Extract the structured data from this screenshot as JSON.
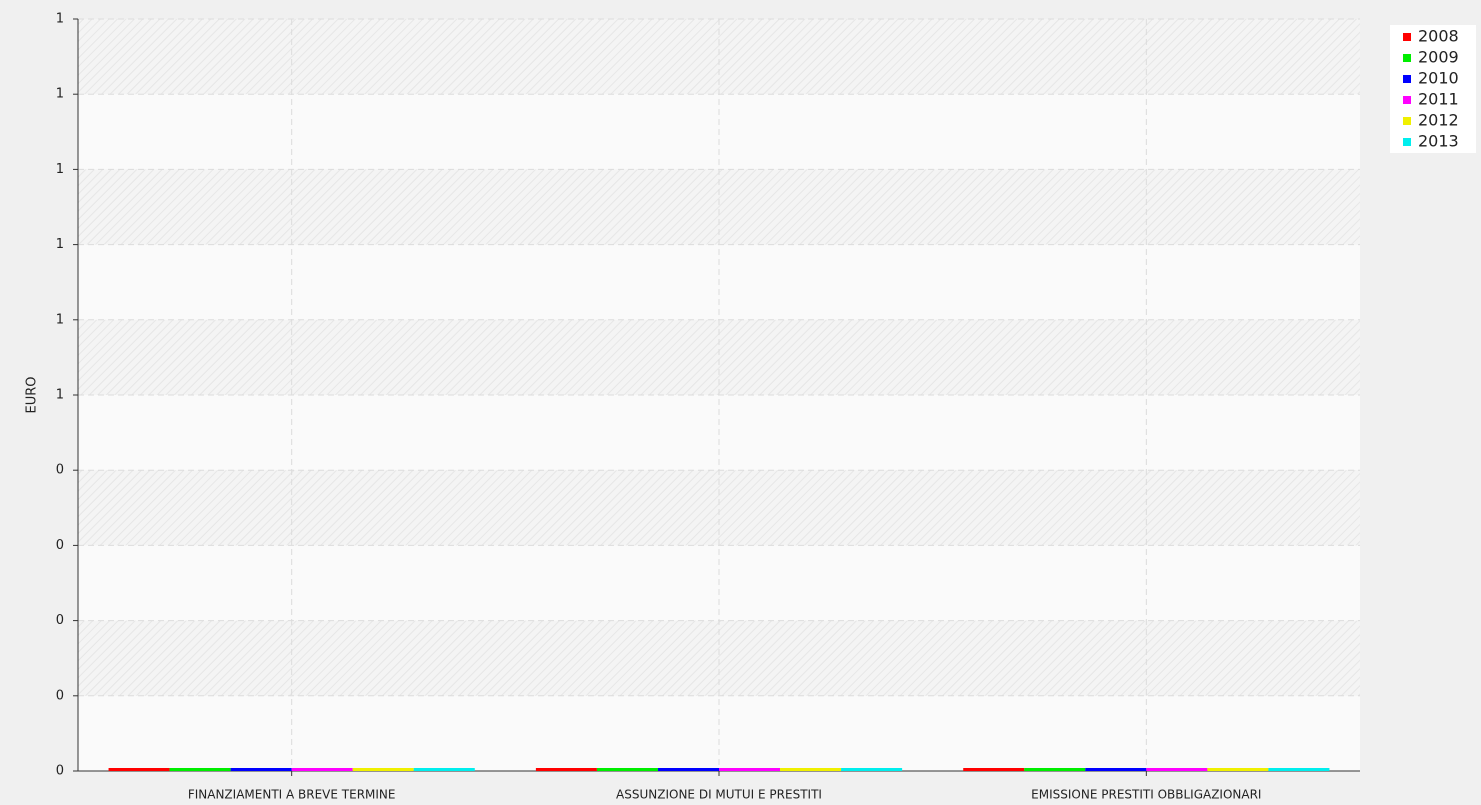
{
  "chart_data": {
    "type": "bar",
    "ylabel": "EURO",
    "categories": [
      "FINANZIAMENTI A BREVE TERMINE",
      "ASSUNZIONE DI MUTUI E PRESTITI",
      "EMISSIONE PRESTITI OBBLIGAZIONARI"
    ],
    "series": [
      {
        "name": "2008",
        "color": "#ff0000",
        "values": [
          0,
          0,
          0
        ]
      },
      {
        "name": "2009",
        "color": "#00ee00",
        "values": [
          0,
          0,
          0
        ]
      },
      {
        "name": "2010",
        "color": "#0000ff",
        "values": [
          0,
          0,
          0
        ]
      },
      {
        "name": "2011",
        "color": "#ff00ff",
        "values": [
          0,
          0,
          0
        ]
      },
      {
        "name": "2012",
        "color": "#f0f000",
        "values": [
          0,
          0,
          0
        ]
      },
      {
        "name": "2013",
        "color": "#00eeee",
        "values": [
          0,
          0,
          0
        ]
      }
    ],
    "ylim": [
      0,
      1
    ],
    "yticks": [
      0,
      {
        "value": 0.1,
        "label": "0"
      },
      {
        "value": 0.2,
        "label": "0"
      },
      {
        "value": 0.3,
        "label": "0"
      },
      {
        "value": 0.4,
        "label": "0"
      },
      {
        "value": 0.5,
        "label": "1"
      },
      {
        "value": 0.6,
        "label": "1"
      },
      {
        "value": 0.7,
        "label": "1"
      },
      {
        "value": 0.8,
        "label": "1"
      },
      {
        "value": 0.9,
        "label": "1"
      },
      1
    ],
    "grid": true,
    "legend": "top-right"
  }
}
